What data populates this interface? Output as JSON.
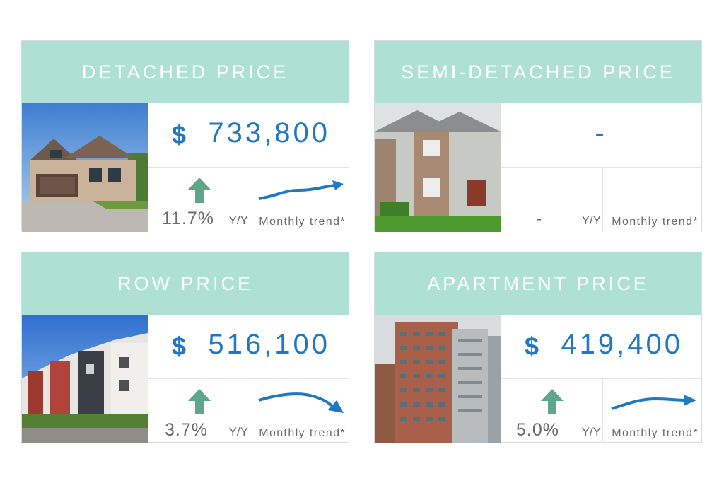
{
  "colors": {
    "header_bg": "#aee0d4",
    "price_blue": "#1f78c1",
    "arrow_green": "#5fa68c",
    "muted_text": "#6b6b6b"
  },
  "cards": [
    {
      "title": "DETACHED PRICE",
      "currency": "$",
      "price": "733,800",
      "change": "11.7%",
      "yy": "Y/Y",
      "trend_label": "Monthly trend*",
      "change_direction": "up",
      "trend_direction": "rising"
    },
    {
      "title": "SEMI-DETACHED PRICE",
      "currency": "",
      "price": "-",
      "change": "-",
      "yy": "Y/Y",
      "trend_label": "Monthly trend*",
      "change_direction": "none",
      "trend_direction": "none"
    },
    {
      "title": "ROW PRICE",
      "currency": "$",
      "price": "516,100",
      "change": "3.7%",
      "yy": "Y/Y",
      "trend_label": "Monthly trend*",
      "change_direction": "up",
      "trend_direction": "falling"
    },
    {
      "title": "APARTMENT PRICE",
      "currency": "$",
      "price": "419,400",
      "change": "5.0%",
      "yy": "Y/Y",
      "trend_label": "Monthly trend*",
      "change_direction": "up",
      "trend_direction": "flattening"
    }
  ]
}
